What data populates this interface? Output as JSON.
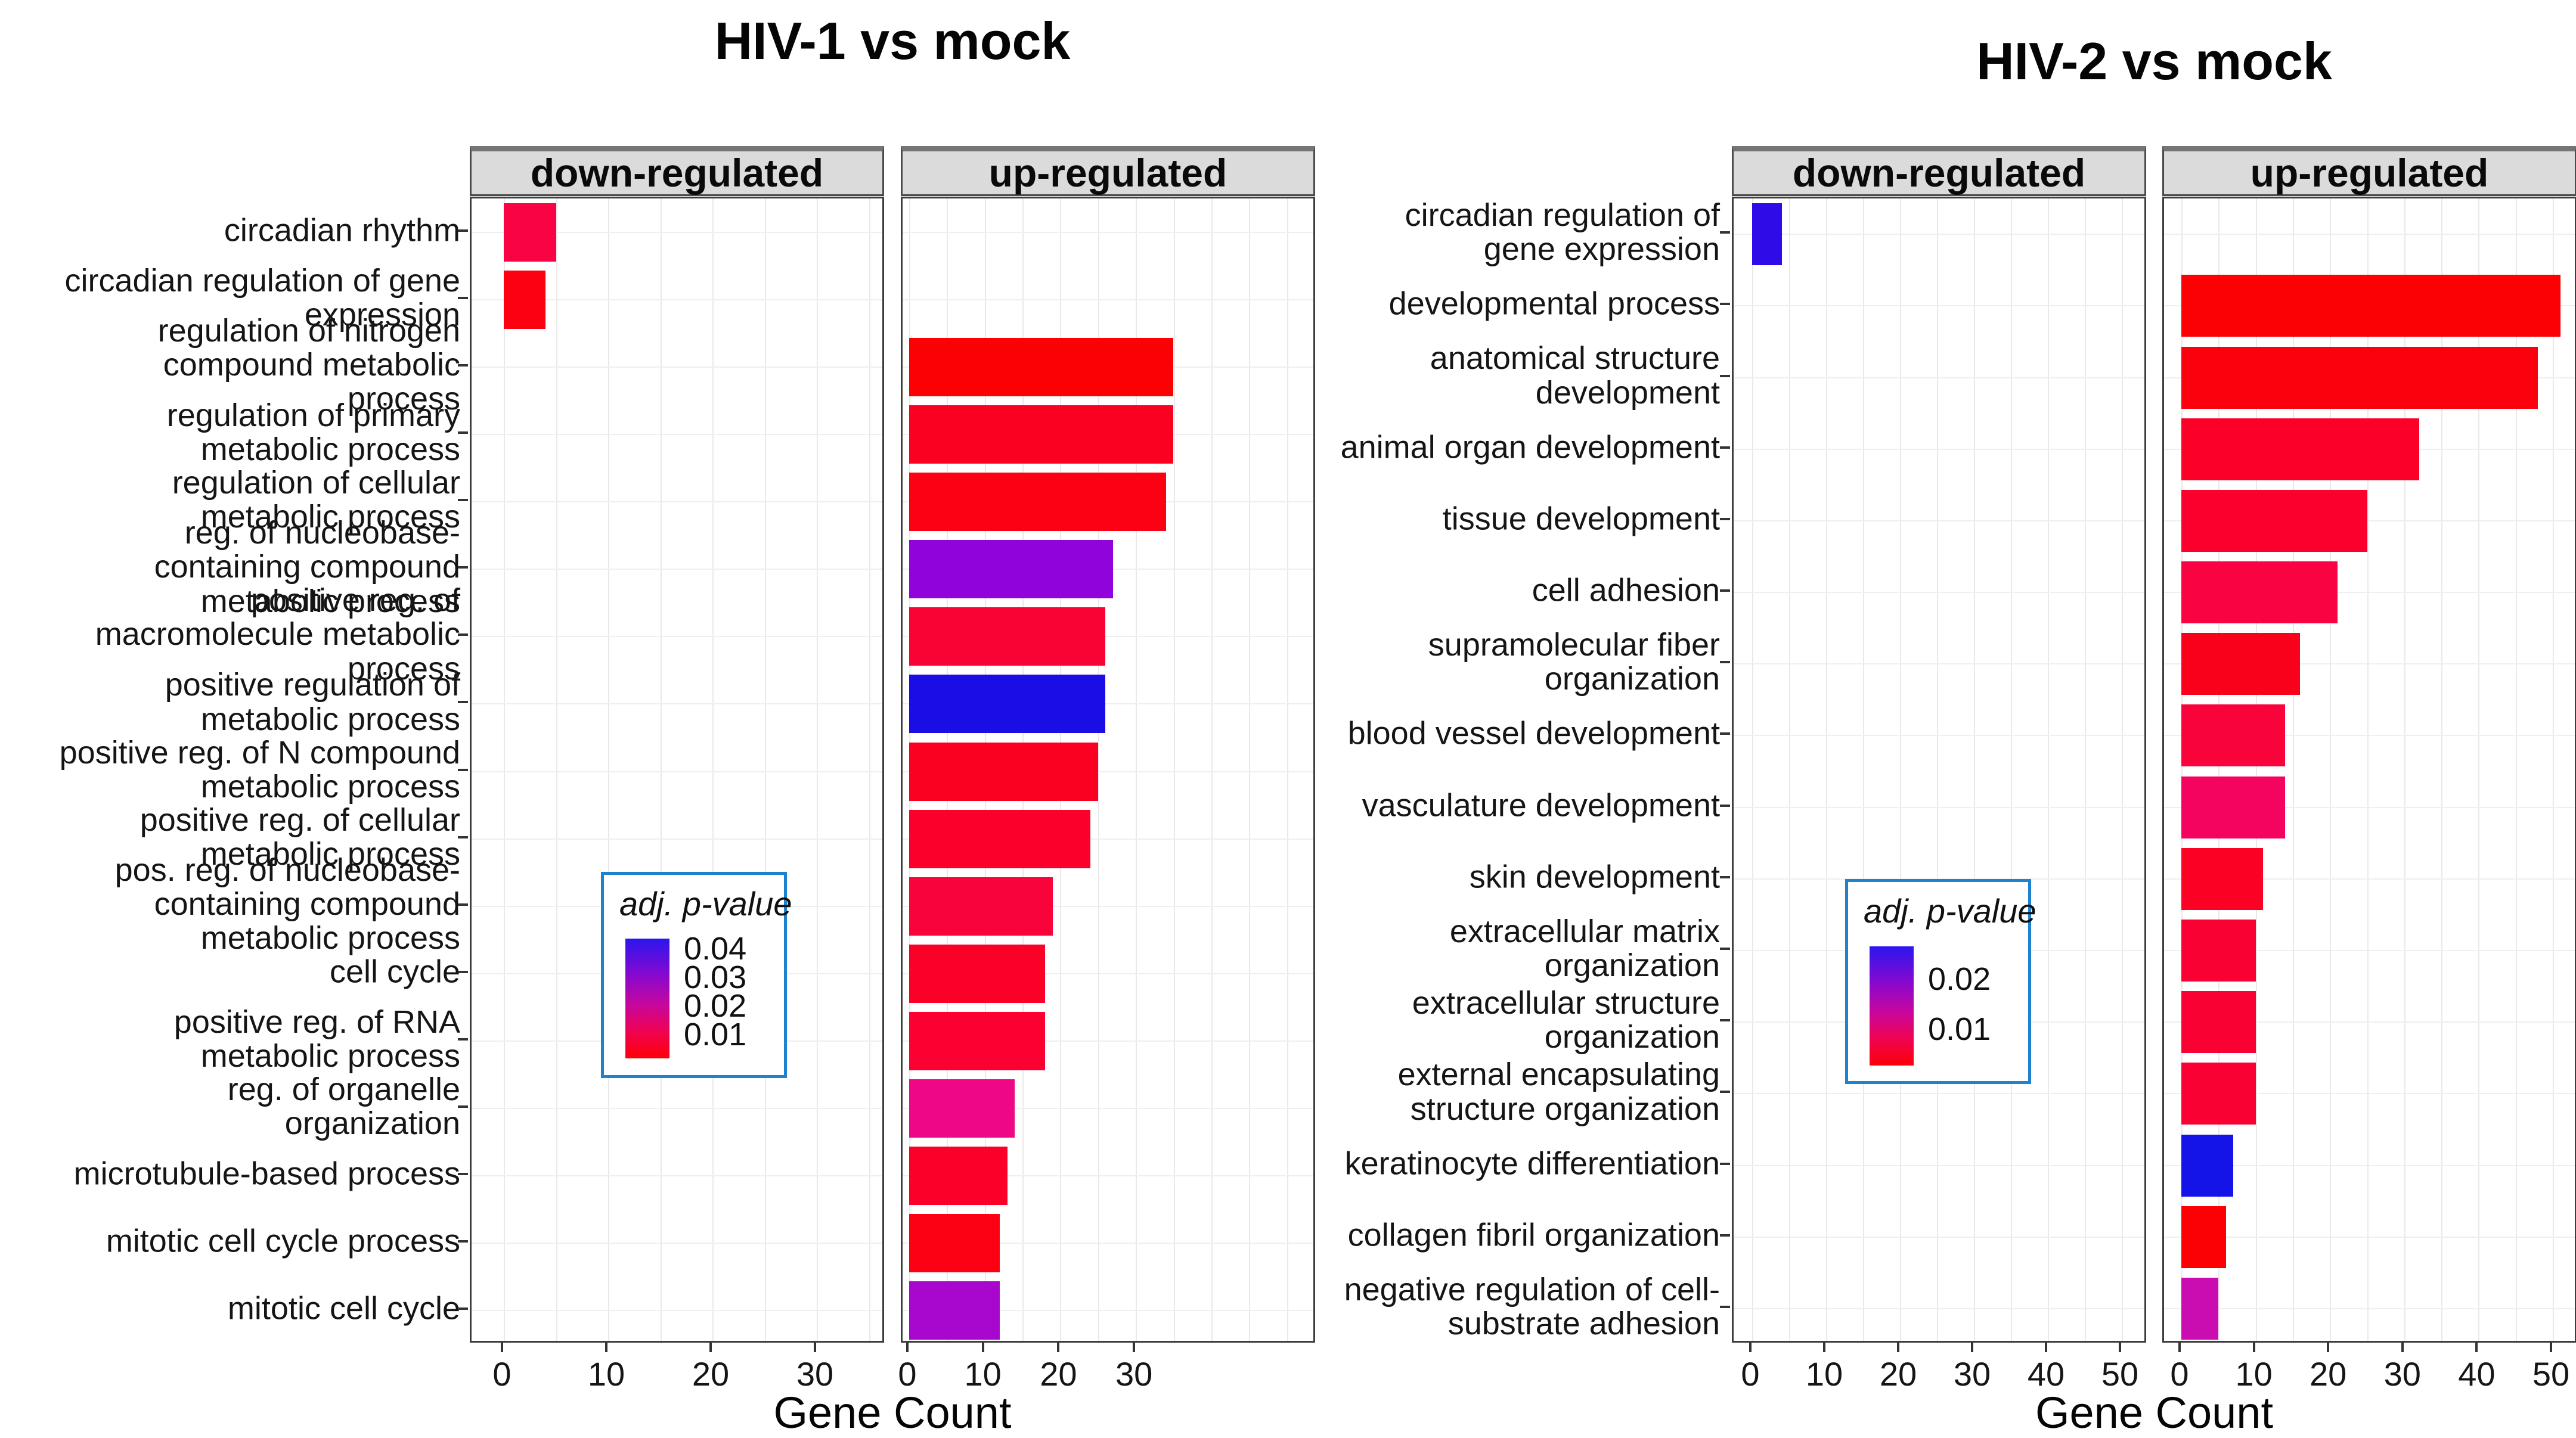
{
  "page": {
    "background": "#ffffff"
  },
  "chart_data": [
    {
      "type": "bar",
      "orientation": "horizontal",
      "title": "HIV-1 vs mock",
      "xlabel": "Gene Count",
      "facet_labels": [
        "down-regulated",
        "up-regulated"
      ],
      "x_ticks": [
        0,
        10,
        20,
        30
      ],
      "grid": "on",
      "legend": {
        "title": "adj. p-value",
        "tick_labels": [
          "0.04",
          "0.03",
          "0.02",
          "0.01"
        ],
        "gradient": [
          "#2b16ee",
          "#b008b8",
          "#f4035c",
          "#fd0008"
        ],
        "border_color": "#1e82ce",
        "position": "inside-down-panel"
      },
      "categories": [
        "circadian rhythm",
        "circadian regulation of gene expression",
        "regulation of nitrogen compound metabolic process",
        "regulation of primary metabolic process",
        "regulation of cellular metabolic process",
        "reg. of nucleobase-containing compound metabolic process",
        "positive reg. of macromolecule metabolic process",
        "positive regulation of metabolic process",
        "positive reg. of N compound metabolic process",
        "positive reg. of cellular metabolic process",
        "pos. reg. of nucleobase-containing compound metabolic process",
        "cell cycle",
        "positive reg. of RNA metabolic process",
        "reg. of organelle organization",
        "microtubule-based process",
        "mitotic cell cycle process",
        "mitotic cell cycle"
      ],
      "series": [
        {
          "name": "down-regulated",
          "values": [
            5,
            4,
            null,
            null,
            null,
            null,
            null,
            null,
            null,
            null,
            null,
            null,
            null,
            null,
            null,
            null,
            null
          ],
          "colors": [
            "#fa0345",
            "#fb0111",
            null,
            null,
            null,
            null,
            null,
            null,
            null,
            null,
            null,
            null,
            null,
            null,
            null,
            null,
            null
          ]
        },
        {
          "name": "up-regulated",
          "values": [
            null,
            null,
            35,
            35,
            34,
            27,
            26,
            26,
            25,
            24,
            19,
            18,
            18,
            14,
            13,
            12,
            12
          ],
          "colors": [
            null,
            null,
            "#fb0103",
            "#fb0121",
            "#fb0113",
            "#9103db",
            "#f90334",
            "#1a0de5",
            "#fa0121",
            "#fa012b",
            "#f9033b",
            "#fa0127",
            "#fa0131",
            "#ee0786",
            "#fa0127",
            "#fb0113",
            "#a808cd"
          ]
        }
      ]
    },
    {
      "type": "bar",
      "orientation": "horizontal",
      "title": "HIV-2 vs mock",
      "xlabel": "Gene Count",
      "facet_labels": [
        "down-regulated",
        "up-regulated"
      ],
      "x_ticks": [
        0,
        10,
        20,
        30,
        40,
        50
      ],
      "grid": "on",
      "legend": {
        "title": "adj. p-value",
        "tick_labels": [
          "0.02",
          "0.01"
        ],
        "gradient": [
          "#2b16ee",
          "#b008b8",
          "#f4035c",
          "#fd0008"
        ],
        "border_color": "#1e82ce",
        "position": "inside-down-panel"
      },
      "categories": [
        "circadian regulation of gene expression",
        "developmental process",
        "anatomical structure development",
        "animal organ development",
        "tissue development",
        "cell adhesion",
        "supramolecular fiber organization",
        "blood vessel development",
        "vasculature development",
        "skin development",
        "extracellular matrix organization",
        "extracellular structure organization",
        "external encapsulating structure organization",
        "keratinocyte differentiation",
        "collagen fibril organization",
        "negative regulation of cell-substrate adhesion"
      ],
      "series": [
        {
          "name": "down-regulated",
          "values": [
            4,
            null,
            null,
            null,
            null,
            null,
            null,
            null,
            null,
            null,
            null,
            null,
            null,
            null,
            null,
            null
          ],
          "colors": [
            "#2f0be8",
            null,
            null,
            null,
            null,
            null,
            null,
            null,
            null,
            null,
            null,
            null,
            null,
            null,
            null,
            null
          ]
        },
        {
          "name": "up-regulated",
          "values": [
            null,
            51,
            48,
            32,
            25,
            21,
            16,
            14,
            14,
            11,
            10,
            10,
            10,
            7,
            6,
            5
          ],
          "colors": [
            null,
            "#fb0103",
            "#fb010d",
            "#fb0127",
            "#fa012d",
            "#f90343",
            "#fa011b",
            "#f9033b",
            "#f4035f",
            "#fb0123",
            "#fa0134",
            "#fa0134",
            "#fa0134",
            "#1414e8",
            "#fc0103",
            "#c90db1"
          ]
        }
      ]
    }
  ]
}
